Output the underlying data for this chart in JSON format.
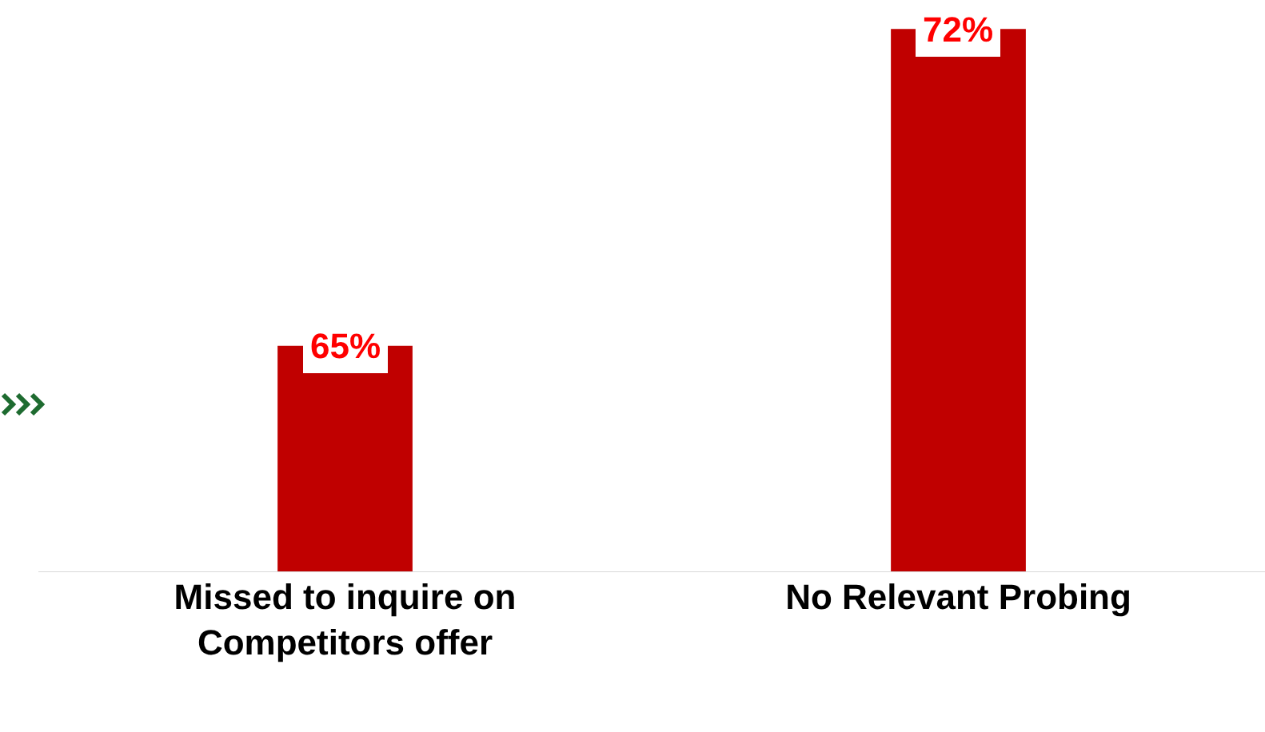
{
  "chart_data": {
    "type": "bar",
    "categories": [
      "Missed to inquire on Competitors offer",
      "No Relevant Probing"
    ],
    "values": [
      65,
      72
    ],
    "color": "#c00000",
    "value_labels": [
      "65%",
      "72%"
    ],
    "ylim": [
      60,
      72.5
    ]
  }
}
